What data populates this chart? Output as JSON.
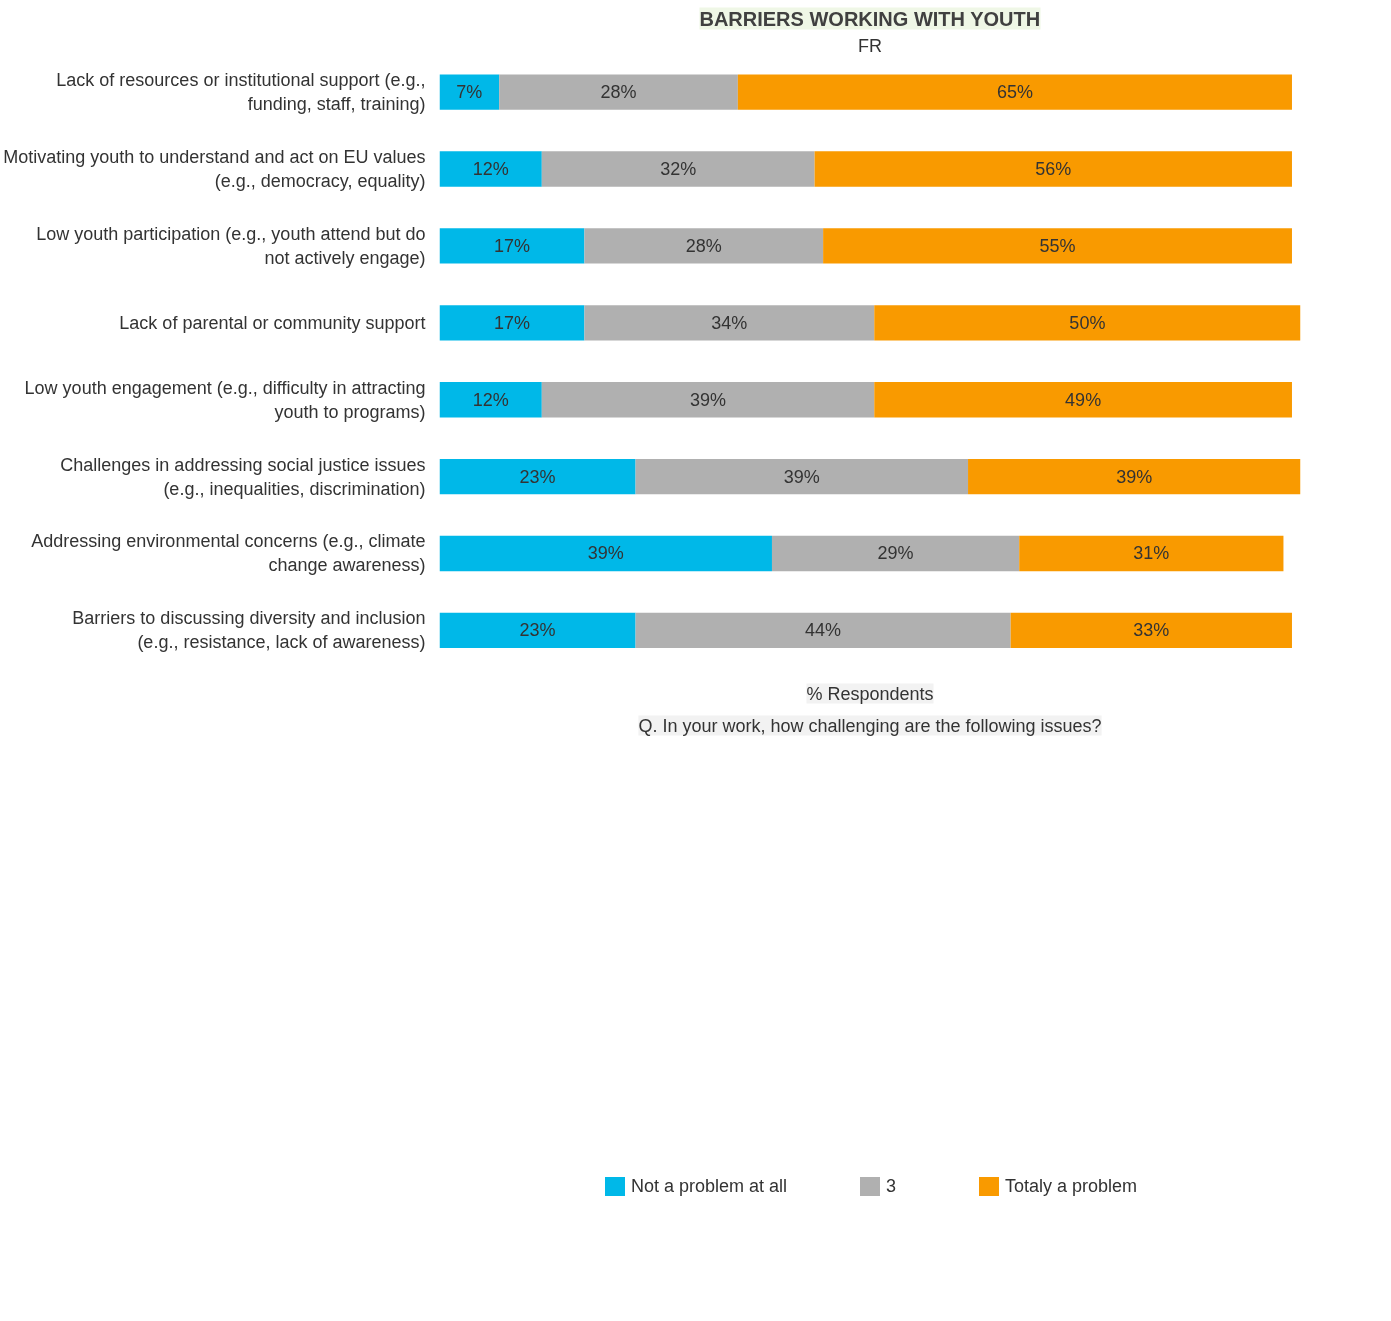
{
  "chart_data": {
    "type": "bar",
    "orientation": "horizontal",
    "stacked": true,
    "title": "BARRIERS WORKING WITH YOUTH",
    "subtitle": "FR",
    "categories": [
      "Lack of resources or institutional support (e.g., funding, staff, training)",
      "Motivating youth to understand and act on EU values (e.g., democracy, equality)",
      "Low youth participation (e.g., youth attend but do not actively engage)",
      "Lack of parental or community support",
      "Low youth engagement (e.g., difficulty in attracting youth to programs)",
      "Challenges in addressing social justice issues (e.g., inequalities, discrimination)",
      "Addressing environmental concerns (e.g., climate change awareness)",
      "Barriers to discussing diversity and inclusion (e.g., resistance, lack of awareness)"
    ],
    "series": [
      {
        "name": "Not a problem at all",
        "color": "#00b8e8",
        "values": [
          7,
          12,
          17,
          17,
          12,
          23,
          39,
          23
        ],
        "value_labels": [
          "7%",
          "12%",
          "17%",
          "17%",
          "12%",
          "23%",
          "39%",
          "23%"
        ]
      },
      {
        "name": "3",
        "color": "#b0b0b0",
        "values": [
          28,
          32,
          28,
          34,
          39,
          39,
          29,
          44
        ],
        "value_labels": [
          "28%",
          "32%",
          "28%",
          "34%",
          "39%",
          "39%",
          "29%",
          "44%"
        ]
      },
      {
        "name": "Totaly a problem",
        "color": "#f99a00",
        "values": [
          65,
          56,
          55,
          50,
          49,
          39,
          31,
          33
        ],
        "value_labels": [
          "65%",
          "56%",
          "55%",
          "50%",
          "49%",
          "39%",
          "31%",
          "33%"
        ]
      }
    ],
    "tick_labels": "y",
    "grid": false,
    "legend": "bottom",
    "annotations": [
      "% Respondents",
      "Q. In your work, how challenging are the following issues?"
    ]
  }
}
